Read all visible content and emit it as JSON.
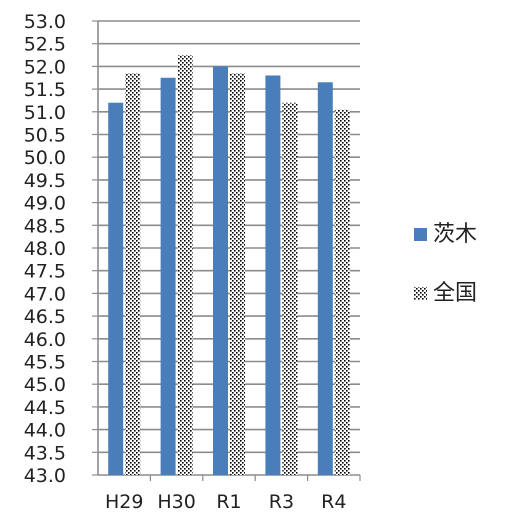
{
  "chart_data": {
    "type": "bar",
    "categories": [
      "H29",
      "H30",
      "R1",
      "R3",
      "R4"
    ],
    "series": [
      {
        "name": "茨木",
        "values": [
          51.2,
          51.75,
          52.0,
          51.8,
          51.65
        ],
        "color": "#4a7ebb",
        "pattern": "solid"
      },
      {
        "name": "全国",
        "values": [
          51.85,
          52.25,
          51.85,
          51.2,
          51.05
        ],
        "color": "#000000",
        "pattern": "dotted"
      }
    ],
    "ylim": [
      43.0,
      53.0
    ],
    "ytick_step": 0.5,
    "yticks": [
      "43.0",
      "43.5",
      "44.0",
      "44.5",
      "45.0",
      "45.5",
      "46.0",
      "46.5",
      "47.0",
      "47.5",
      "48.0",
      "48.5",
      "49.0",
      "49.5",
      "50.0",
      "50.5",
      "51.0",
      "51.5",
      "52.0",
      "52.5",
      "53.0"
    ],
    "grid": true,
    "legend_position": "right",
    "title": "",
    "xlabel": "",
    "ylabel": ""
  }
}
